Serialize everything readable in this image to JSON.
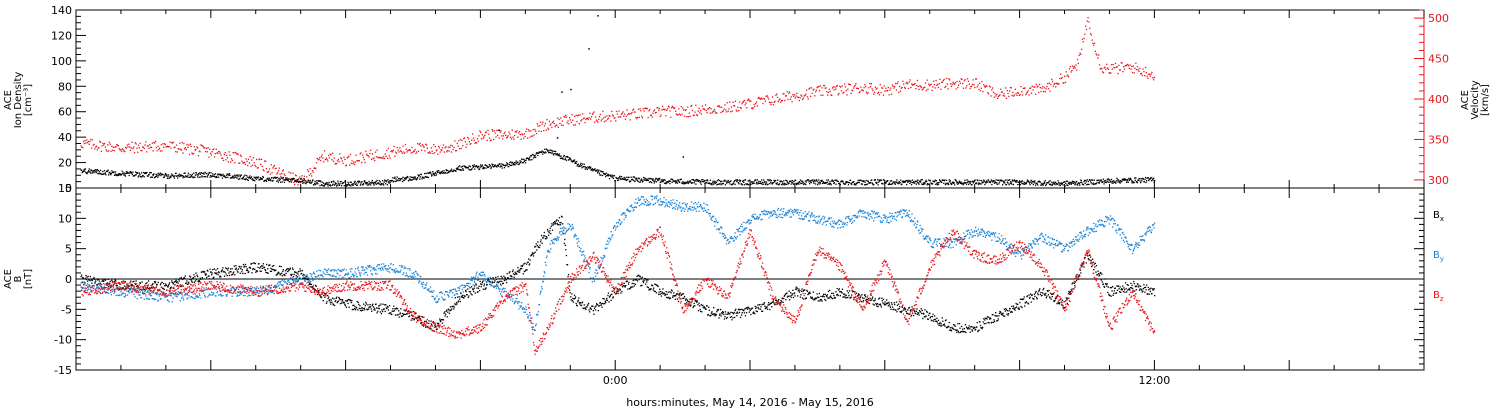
{
  "chart_data": [
    {
      "type": "scatter",
      "panel": "top",
      "ylabel_left": [
        "ACE",
        "Ion Density",
        "[cm⁻³]"
      ],
      "ylabel_right": [
        "ACE",
        "Velocity",
        "[km/s]"
      ],
      "left_axis": {
        "ylim": [
          0,
          140
        ],
        "ticks": [
          0,
          20,
          40,
          60,
          80,
          100,
          120,
          140
        ]
      },
      "right_axis": {
        "ylim": [
          290,
          510
        ],
        "ticks": [
          300,
          350,
          400,
          450,
          500
        ]
      },
      "x_range_hours": [
        -12,
        18
      ],
      "series": [
        {
          "name": "",
          "axis": "left",
          "color": "#000000",
          "points": [
            [
              -11.9,
              14
            ],
            [
              -11,
              12
            ],
            [
              -10,
              10
            ],
            [
              -9,
              11
            ],
            [
              -8,
              8
            ],
            [
              -7,
              6
            ],
            [
              -6.5,
              4
            ],
            [
              -6,
              4
            ],
            [
              -5,
              5
            ],
            [
              -5,
              7
            ],
            [
              -4.5,
              8
            ],
            [
              -4,
              12
            ],
            [
              -3.5,
              16
            ],
            [
              -3,
              17
            ],
            [
              -2.5,
              18
            ],
            [
              -2,
              22
            ],
            [
              -1.7,
              28
            ],
            [
              -1.5,
              30
            ],
            [
              -1,
              22
            ],
            [
              -0.5,
              14
            ],
            [
              0,
              8
            ],
            [
              0.5,
              7
            ],
            [
              1,
              6
            ],
            [
              2,
              5
            ],
            [
              3,
              5
            ],
            [
              4,
              5
            ],
            [
              5,
              5
            ],
            [
              6,
              5
            ],
            [
              7,
              5
            ],
            [
              8,
              5
            ],
            [
              9,
              5
            ],
            [
              10,
              4
            ],
            [
              11,
              6
            ],
            [
              12,
              7
            ]
          ],
          "outliers": [
            [
              -2.6,
              46
            ],
            [
              -1.3,
              40
            ],
            [
              -1.2,
              76
            ],
            [
              -1.0,
              78
            ],
            [
              -0.6,
              110
            ],
            [
              -0.4,
              136
            ],
            [
              1.5,
              25
            ]
          ]
        },
        {
          "name": "",
          "axis": "right",
          "color": "#e8161b",
          "points": [
            [
              -11.9,
              346
            ],
            [
              -11,
              340
            ],
            [
              -10,
              343
            ],
            [
              -9,
              335
            ],
            [
              -8,
              322
            ],
            [
              -7.5,
              310
            ],
            [
              -7,
              298
            ],
            [
              -6.5,
              330
            ],
            [
              -6,
              325
            ],
            [
              -5.5,
              330
            ],
            [
              -5,
              335
            ],
            [
              -4.5,
              340
            ],
            [
              -4,
              338
            ],
            [
              -3.5,
              343
            ],
            [
              -3,
              356
            ],
            [
              -2.5,
              356
            ],
            [
              -2,
              358
            ],
            [
              -1.5,
              370
            ],
            [
              -1,
              375
            ],
            [
              -0.5,
              378
            ],
            [
              0,
              380
            ],
            [
              0.5,
              382
            ],
            [
              1,
              385
            ],
            [
              1.5,
              385
            ],
            [
              2,
              388
            ],
            [
              2.5,
              390
            ],
            [
              3,
              395
            ],
            [
              3.5,
              400
            ],
            [
              4,
              405
            ],
            [
              4.5,
              410
            ],
            [
              5,
              412
            ],
            [
              5.5,
              415
            ],
            [
              6,
              412
            ],
            [
              6.5,
              418
            ],
            [
              7,
              418
            ],
            [
              7.5,
              420
            ],
            [
              8,
              420
            ],
            [
              8.5,
              405
            ],
            [
              9,
              412
            ],
            [
              9.5,
              412
            ],
            [
              10,
              428
            ],
            [
              10.3,
              445
            ],
            [
              10.5,
              500
            ],
            [
              10.8,
              440
            ],
            [
              11,
              438
            ],
            [
              11.5,
              440
            ],
            [
              12,
              430
            ]
          ]
        }
      ]
    },
    {
      "type": "scatter",
      "panel": "bottom",
      "ylabel": [
        "ACE",
        "B",
        "[nT]"
      ],
      "ylim": [
        -15,
        15
      ],
      "ticks": [
        -15,
        -10,
        -5,
        0,
        5,
        10,
        15
      ],
      "x_range_hours": [
        -12,
        18
      ],
      "xticks": [
        {
          "h": 0,
          "label": "0:00"
        },
        {
          "h": 12,
          "label": "12:00"
        }
      ],
      "xlabel": "hours:minutes, May 14, 2016 - May 15, 2016",
      "legend": [
        {
          "label": "B",
          "sub": "x",
          "color": "#000000"
        },
        {
          "label": "B",
          "sub": "y",
          "color": "#1b83d6"
        },
        {
          "label": "B",
          "sub": "z",
          "color": "#e8161b"
        }
      ],
      "series": [
        {
          "name": "Bx",
          "color": "#000000",
          "points": [
            [
              -11.9,
              0
            ],
            [
              -11,
              -1
            ],
            [
              -10,
              -1
            ],
            [
              -9,
              1
            ],
            [
              -8,
              2
            ],
            [
              -7,
              1
            ],
            [
              -6.5,
              -3
            ],
            [
              -6,
              -4
            ],
            [
              -5,
              -5
            ],
            [
              -4.5,
              -6
            ],
            [
              -4,
              -8
            ],
            [
              -3.5,
              -3
            ],
            [
              -3,
              -1
            ],
            [
              -2.5,
              0
            ],
            [
              -2,
              2
            ],
            [
              -1.8,
              5
            ],
            [
              -1.5,
              8
            ],
            [
              -1.2,
              10
            ],
            [
              -1,
              -3
            ],
            [
              -0.5,
              -5
            ],
            [
              0,
              -2
            ],
            [
              0.5,
              0
            ],
            [
              1,
              -2
            ],
            [
              1.5,
              -3
            ],
            [
              2,
              -5
            ],
            [
              2.5,
              -6
            ],
            [
              3,
              -5
            ],
            [
              3.5,
              -4
            ],
            [
              4,
              -2
            ],
            [
              4.5,
              -3
            ],
            [
              5,
              -2
            ],
            [
              5.5,
              -3
            ],
            [
              6,
              -4
            ],
            [
              6.5,
              -5
            ],
            [
              7,
              -6
            ],
            [
              7.5,
              -8
            ],
            [
              8,
              -8
            ],
            [
              8.5,
              -6
            ],
            [
              9,
              -4
            ],
            [
              9.5,
              -2
            ],
            [
              10,
              -4
            ],
            [
              10.3,
              1
            ],
            [
              10.5,
              4
            ],
            [
              11,
              -2
            ],
            [
              11.5,
              -1
            ],
            [
              12,
              -2
            ]
          ]
        },
        {
          "name": "By",
          "color": "#1b83d6",
          "points": [
            [
              -11.9,
              -1
            ],
            [
              -11,
              -2
            ],
            [
              -10,
              -3
            ],
            [
              -9,
              -2
            ],
            [
              -8,
              -2
            ],
            [
              -7,
              0
            ],
            [
              -6.5,
              1
            ],
            [
              -6,
              1
            ],
            [
              -5,
              2
            ],
            [
              -4.5,
              1
            ],
            [
              -4,
              -3
            ],
            [
              -3.5,
              -2
            ],
            [
              -3,
              1
            ],
            [
              -2.5,
              -2
            ],
            [
              -2,
              -5
            ],
            [
              -1.8,
              -8
            ],
            [
              -1.5,
              5
            ],
            [
              -1.2,
              8
            ],
            [
              -1,
              9
            ],
            [
              -0.5,
              0
            ],
            [
              0,
              9
            ],
            [
              0.5,
              13
            ],
            [
              1,
              13
            ],
            [
              1.5,
              12
            ],
            [
              2,
              12
            ],
            [
              2.5,
              6
            ],
            [
              3,
              10
            ],
            [
              3.5,
              11
            ],
            [
              4,
              11
            ],
            [
              4.5,
              10
            ],
            [
              5,
              9
            ],
            [
              5.5,
              11
            ],
            [
              6,
              10
            ],
            [
              6.5,
              11
            ],
            [
              7,
              6
            ],
            [
              7.5,
              6
            ],
            [
              8,
              8
            ],
            [
              8.5,
              7
            ],
            [
              9,
              4
            ],
            [
              9.5,
              7
            ],
            [
              10,
              5
            ],
            [
              10.5,
              8
            ],
            [
              11,
              10
            ],
            [
              11.5,
              5
            ],
            [
              12,
              9
            ]
          ]
        },
        {
          "name": "Bz",
          "color": "#e8161b",
          "points": [
            [
              -11.9,
              -2
            ],
            [
              -11,
              -1
            ],
            [
              -10,
              -2
            ],
            [
              -9,
              -1
            ],
            [
              -8,
              -2
            ],
            [
              -7,
              -1
            ],
            [
              -6.5,
              -2
            ],
            [
              -6,
              -1
            ],
            [
              -5,
              -1
            ],
            [
              -4.5,
              -6
            ],
            [
              -4,
              -8
            ],
            [
              -3.5,
              -9
            ],
            [
              -3,
              -8
            ],
            [
              -2.5,
              -3
            ],
            [
              -2,
              -1
            ],
            [
              -1.8,
              -12
            ],
            [
              -1.5,
              -8
            ],
            [
              -1.2,
              -3
            ],
            [
              -1,
              0
            ],
            [
              -0.5,
              4
            ],
            [
              0,
              -2
            ],
            [
              0.5,
              5
            ],
            [
              1,
              8
            ],
            [
              1.5,
              -5
            ],
            [
              2,
              0
            ],
            [
              2.5,
              -3
            ],
            [
              3,
              8
            ],
            [
              3.5,
              -3
            ],
            [
              4,
              -7
            ],
            [
              4.5,
              5
            ],
            [
              5,
              2
            ],
            [
              5.5,
              -5
            ],
            [
              6,
              3
            ],
            [
              6.5,
              -7
            ],
            [
              7,
              2
            ],
            [
              7.5,
              8
            ],
            [
              8,
              4
            ],
            [
              8.5,
              3
            ],
            [
              9,
              6
            ],
            [
              9.5,
              2
            ],
            [
              10,
              -5
            ],
            [
              10.5,
              5
            ],
            [
              11,
              -8
            ],
            [
              11.5,
              -2
            ],
            [
              12,
              -9
            ]
          ]
        }
      ]
    }
  ]
}
